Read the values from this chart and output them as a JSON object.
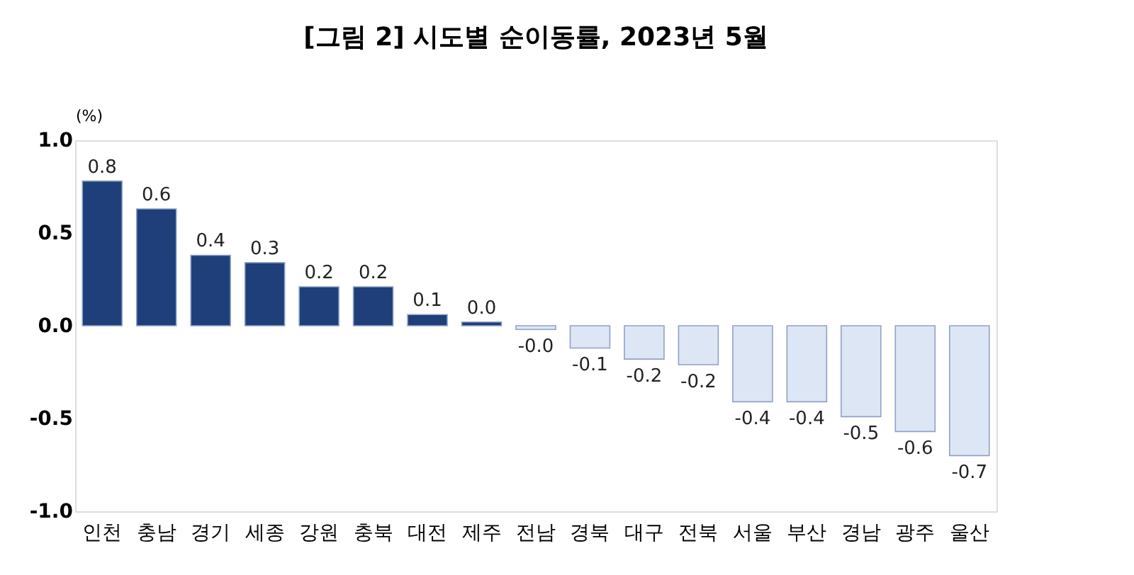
{
  "chart_data": {
    "type": "bar",
    "title": "[그림 2] 시도별 순이동률, 2023년 5월",
    "ylabel": "(%)",
    "categories": [
      "인천",
      "충남",
      "경기",
      "세종",
      "강원",
      "충북",
      "대전",
      "제주",
      "전남",
      "경북",
      "대구",
      "전북",
      "서울",
      "부산",
      "경남",
      "광주",
      "울산"
    ],
    "values": [
      0.78,
      0.63,
      0.38,
      0.34,
      0.21,
      0.21,
      0.06,
      0.02,
      -0.02,
      -0.12,
      -0.18,
      -0.21,
      -0.41,
      -0.41,
      -0.49,
      -0.57,
      -0.7
    ],
    "value_labels": [
      "0.8",
      "0.6",
      "0.4",
      "0.3",
      "0.2",
      "0.2",
      "0.1",
      "0.0",
      "-0.0",
      "-0.1",
      "-0.2",
      "-0.2",
      "-0.4",
      "-0.4",
      "-0.5",
      "-0.6",
      "-0.7"
    ],
    "colors": [
      "#1f3f7a",
      "#1f3f7a",
      "#1f3f7a",
      "#1f3f7a",
      "#1f3f7a",
      "#1f3f7a",
      "#1f3f7a",
      "#1f3f7a",
      "#dde6f4",
      "#dde6f4",
      "#dde6f4",
      "#dde6f4",
      "#dde6f4",
      "#dde6f4",
      "#dde6f4",
      "#dde6f4",
      "#dde6f4"
    ],
    "ylim": [
      -1.0,
      1.0
    ],
    "yticks": [
      {
        "value": 1.0,
        "label": "1.0"
      },
      {
        "value": 0.5,
        "label": "0.5"
      },
      {
        "value": 0.0,
        "label": "0.0"
      },
      {
        "value": -0.5,
        "label": "-0.5"
      },
      {
        "value": -1.0,
        "label": "-1.0"
      }
    ],
    "grid": false
  }
}
